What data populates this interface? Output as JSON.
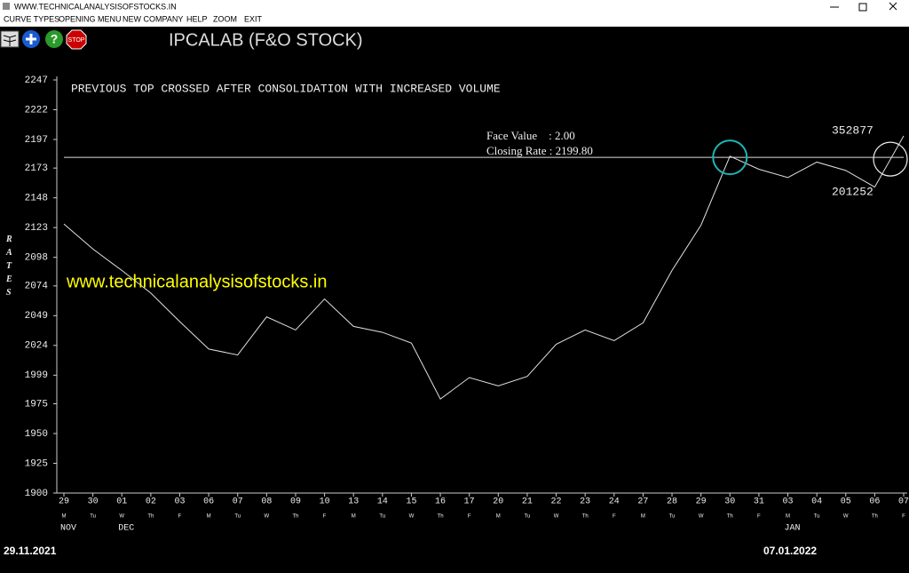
{
  "window": {
    "title": "WWW.TECHNICALANALYSISOFSTOCKS.IN",
    "menu": [
      "CURVE TYPES",
      "OPENING MENU",
      "NEW COMPANY",
      "HELP",
      "ZOOM",
      "EXIT"
    ],
    "stop_label": "STOP",
    "start_date": "29.11.2021",
    "end_date": "07.01.2022"
  },
  "chart_data": {
    "type": "line",
    "title": "IPCALAB (F&O STOCK)",
    "annotation": "PREVIOUS TOP CROSSED AFTER CONSOLIDATION WITH INCREASED VOLUME",
    "face_value": "Face Value    : 2.00",
    "closing_rate": "Closing Rate : 2199.80",
    "volume_high": "352877",
    "volume_low": "201252",
    "watermark": "www.technicalanalysisofstocks.in",
    "y_label": "RATES",
    "categories": [
      "29",
      "30",
      "01",
      "02",
      "03",
      "06",
      "07",
      "08",
      "09",
      "10",
      "13",
      "14",
      "15",
      "16",
      "17",
      "20",
      "21",
      "22",
      "23",
      "24",
      "27",
      "28",
      "29",
      "30",
      "31",
      "03",
      "04",
      "05",
      "06",
      "07"
    ],
    "weekdays": [
      "M",
      "Tu",
      "W",
      "Th",
      "F",
      "M",
      "Tu",
      "W",
      "Th",
      "F",
      "M",
      "Tu",
      "W",
      "Th",
      "F",
      "M",
      "Tu",
      "W",
      "Th",
      "F",
      "M",
      "Tu",
      "W",
      "Th",
      "F",
      "M",
      "Tu",
      "W",
      "Th",
      "F"
    ],
    "months": [
      "NOV",
      null,
      "DEC",
      null,
      null,
      null,
      null,
      null,
      null,
      null,
      null,
      null,
      null,
      null,
      null,
      null,
      null,
      null,
      null,
      null,
      null,
      null,
      null,
      null,
      null,
      "JAN",
      null,
      null,
      null,
      null
    ],
    "series": [
      {
        "name": "IPCALAB",
        "color": "#e0e0e0",
        "values": [
          2126,
          2105,
          2087,
          2068,
          2044,
          2021,
          2016,
          2048,
          2037,
          2063,
          2040,
          2035,
          2026,
          1979,
          1997,
          1990,
          1998,
          2025,
          2037,
          2028,
          2043,
          2087,
          2125,
          2183,
          2172,
          2165,
          2178,
          2171,
          2157,
          2200
        ]
      }
    ],
    "resistance": 2182,
    "ylim": [
      1900,
      2247
    ],
    "yticks": [
      1900,
      1925,
      1950,
      1975,
      1999,
      2024,
      2049,
      2074,
      2098,
      2123,
      2148,
      2173,
      2197,
      2222,
      2247
    ]
  }
}
